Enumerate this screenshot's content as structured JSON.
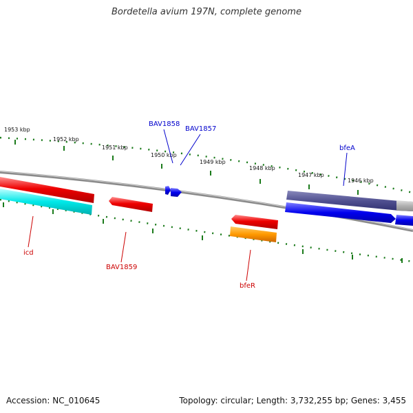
{
  "title": "Bordetella avium 197N, complete genome",
  "footer": {
    "accession": "Accession: NC_010645",
    "summary": "Topology: circular; Length: 3,732,255 bp; Genes: 3,455"
  },
  "kbp_labels": [
    "1953 kbp",
    "1952 kbp",
    "1951 kbp",
    "1950 kbp",
    "1949 kbp",
    "1948 kbp",
    "1947 kbp",
    "1946 kbp"
  ],
  "genes": {
    "icd": "icd",
    "bav1859": "BAV1859",
    "bfer": "bfeR",
    "bav1858": "BAV1858",
    "bav1857": "BAV1857",
    "bfea": "bfeA"
  },
  "colors": {
    "label_forward": "#0000cc",
    "label_reverse": "#cc0000",
    "tick": "#1a7a1a",
    "backbone": "#888888"
  }
}
